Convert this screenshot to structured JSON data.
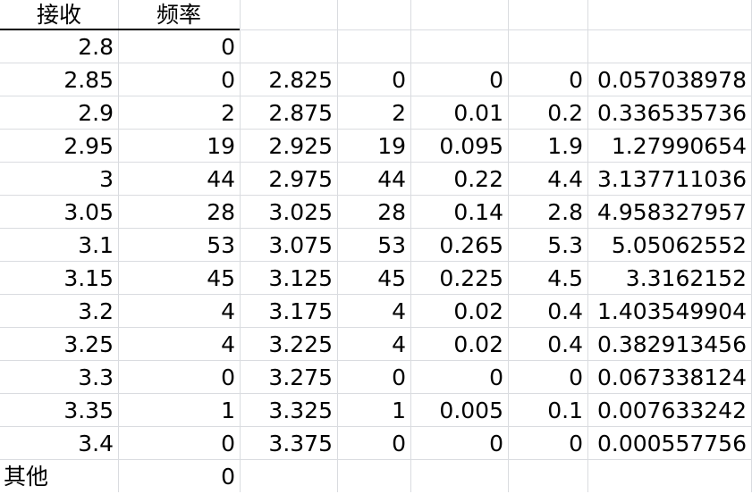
{
  "headers": [
    "接收",
    "频率"
  ],
  "bins": [
    {
      "receive": "2.8",
      "freq": "0"
    },
    {
      "receive": "2.85",
      "freq": "0"
    },
    {
      "receive": "2.9",
      "freq": "2"
    },
    {
      "receive": "2.95",
      "freq": "19"
    },
    {
      "receive": "3",
      "freq": "44"
    },
    {
      "receive": "3.05",
      "freq": "28"
    },
    {
      "receive": "3.1",
      "freq": "53"
    },
    {
      "receive": "3.15",
      "freq": "45"
    },
    {
      "receive": "3.2",
      "freq": "4"
    },
    {
      "receive": "3.25",
      "freq": "4"
    },
    {
      "receive": "3.3",
      "freq": "0"
    },
    {
      "receive": "3.35",
      "freq": "1"
    },
    {
      "receive": "3.4",
      "freq": "0"
    },
    {
      "receive": "其他",
      "freq": "0"
    }
  ],
  "calc": [
    [
      "2.825",
      "0",
      "0",
      "0",
      "0.057038978"
    ],
    [
      "2.875",
      "2",
      "0.01",
      "0.2",
      "0.336535736"
    ],
    [
      "2.925",
      "19",
      "0.095",
      "1.9",
      "1.27990654"
    ],
    [
      "2.975",
      "44",
      "0.22",
      "4.4",
      "3.137711036"
    ],
    [
      "3.025",
      "28",
      "0.14",
      "2.8",
      "4.958327957"
    ],
    [
      "3.075",
      "53",
      "0.265",
      "5.3",
      "5.05062552"
    ],
    [
      "3.125",
      "45",
      "0.225",
      "4.5",
      "3.3162152"
    ],
    [
      "3.175",
      "4",
      "0.02",
      "0.4",
      "1.403549904"
    ],
    [
      "3.225",
      "4",
      "0.02",
      "0.4",
      "0.382913456"
    ],
    [
      "3.275",
      "0",
      "0",
      "0",
      "0.067338124"
    ],
    [
      "3.325",
      "1",
      "0.005",
      "0.1",
      "0.007633242"
    ],
    [
      "3.375",
      "0",
      "0",
      "0",
      "0.000557756"
    ]
  ]
}
